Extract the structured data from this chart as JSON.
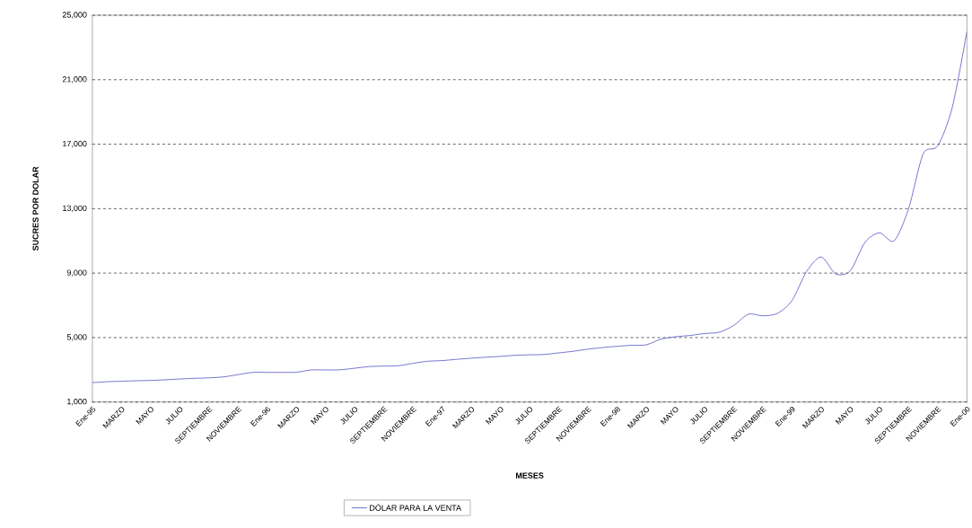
{
  "chart_data": {
    "type": "line",
    "xlabel": "MESES",
    "ylabel": "SUCRES POR DOLAR",
    "categories": [
      "Ene-95",
      null,
      "MARZO",
      null,
      "MAYO",
      null,
      "JULIO",
      null,
      "SEPTIEMBRE",
      null,
      "NOVIEMBRE",
      null,
      "Ene-96",
      null,
      "MARZO",
      null,
      "MAYO",
      null,
      "JULIO",
      null,
      "SEPTIEMBRE",
      null,
      "NOVIEMBRE",
      null,
      "Ene-97",
      null,
      "MARZO",
      null,
      "MAYO",
      null,
      "JULIO",
      null,
      "SEPTIEMBRE",
      null,
      "NOVIEMBRE",
      null,
      "Ene-98",
      null,
      "MARZO",
      null,
      "MAYO",
      null,
      "JULIO",
      null,
      "SEPTIEMBRE",
      null,
      "NOVIEMBRE",
      null,
      "Ene-99",
      null,
      "MARZO",
      null,
      "MAYO",
      null,
      "JULIO",
      null,
      "SEPTIEMBRE",
      null,
      "NOVIEMBRE",
      null,
      "Ene-00"
    ],
    "series": [
      {
        "name": "DÓLAR PARA LA VENTA",
        "color": "#6666cc",
        "values": [
          2200,
          2260,
          2290,
          2320,
          2340,
          2380,
          2430,
          2470,
          2500,
          2560,
          2700,
          2840,
          2840,
          2840,
          2850,
          2990,
          2990,
          3000,
          3100,
          3200,
          3230,
          3250,
          3400,
          3530,
          3570,
          3650,
          3720,
          3780,
          3830,
          3900,
          3930,
          3950,
          4050,
          4150,
          4280,
          4380,
          4460,
          4520,
          4550,
          4900,
          5050,
          5130,
          5250,
          5330,
          5750,
          6450,
          6350,
          6500,
          7300,
          9100,
          10000,
          8950,
          9150,
          10900,
          11500,
          11000,
          13000,
          16400,
          16900,
          19300,
          24000
        ]
      }
    ],
    "ylim": [
      1000,
      25000
    ],
    "yticks": [
      {
        "value": 1000,
        "label": "1,000"
      },
      {
        "value": 5000,
        "label": "5,000"
      },
      {
        "value": 9000,
        "label": "9,000"
      },
      {
        "value": 13000,
        "label": "13,000"
      },
      {
        "value": 17000,
        "label": "17,000"
      },
      {
        "value": 21000,
        "label": "21,000"
      },
      {
        "value": 25000,
        "label": "25,000"
      }
    ],
    "grid": "y",
    "legend": "bottom"
  }
}
